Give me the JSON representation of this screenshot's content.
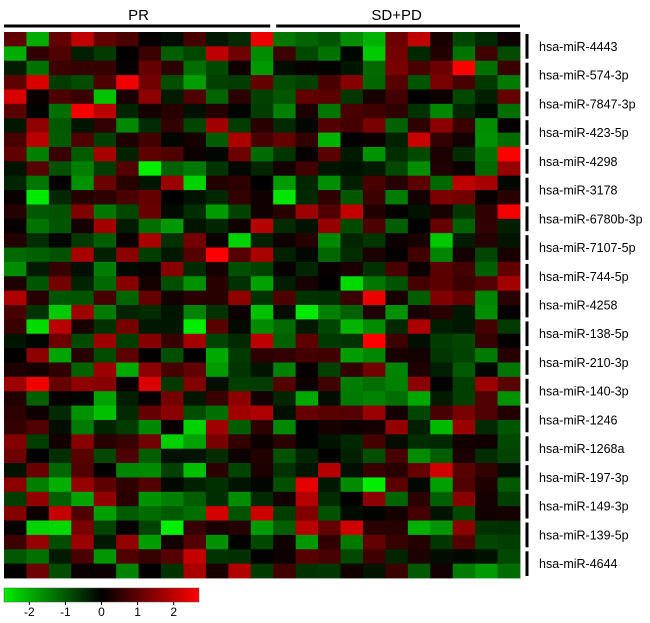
{
  "chart_data": {
    "type": "heatmap",
    "title": "",
    "xlabel": "",
    "ylabel": "",
    "groups": [
      {
        "label": "PR",
        "columns": 12
      },
      {
        "label": "SD+PD",
        "columns": 11
      }
    ],
    "row_labels": [
      "hsa-miR-4443",
      "hsa-miR-574-3p",
      "hsa-miR-7847-3p",
      "hsa-miR-423-5p",
      "hsa-miR-4298",
      "hsa-miR-3178",
      "hsa-miR-6780b-3p",
      "hsa-miR-7107-5p",
      "hsa-miR-744-5p",
      "hsa-miR-4258",
      "hsa-miR-138-5p",
      "hsa-miR-210-3p",
      "hsa-miR-140-3p",
      "hsa-miR-1246",
      "hsa-miR-1268a",
      "hsa-miR-197-3p",
      "hsa-miR-149-3p",
      "hsa-miR-139-5p",
      "hsa-miR-4644"
    ],
    "rows_per_label": 2,
    "n_rows": 38,
    "n_cols": 23,
    "colorbar": {
      "min": -2.7,
      "max": 2.7,
      "ticks": [
        -2,
        -1,
        0,
        1,
        2
      ],
      "low_color": "#00ee00",
      "mid_color": "#000000",
      "high_color": "#ff0000"
    },
    "seed": 73
  }
}
